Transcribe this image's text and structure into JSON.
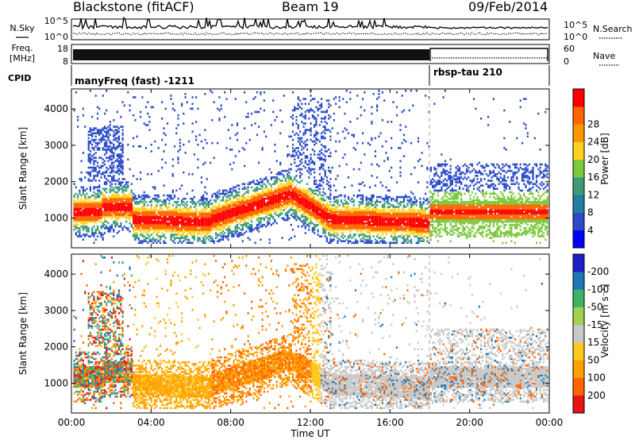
{
  "header": {
    "title": "Blackstone (fitACF)",
    "beam": "Beam 19",
    "date": "09/Feb/2014"
  },
  "top_panels": {
    "noise": {
      "left_label": "N.Sky",
      "right_label": "N.Search",
      "left_ticks": [
        "10^5",
        "10^0"
      ],
      "right_ticks": [
        "10^5",
        "10^0"
      ]
    },
    "freq": {
      "left_label_1": "Freq.",
      "left_label_2": "[MHz]",
      "right_label": "Nave",
      "left_ticks": [
        "18",
        "8"
      ],
      "right_ticks": [
        "60",
        "0"
      ]
    },
    "cpid": {
      "label": "CPID",
      "program_1": "manyFreq (fast) -1211",
      "program_2": "rbsp-tau 210"
    }
  },
  "chart_data": [
    {
      "type": "heatmap",
      "title": "",
      "xlabel": "",
      "ylabel": "Slant Range [km]",
      "x_ticks": [
        "00:00",
        "04:00",
        "08:00",
        "12:00",
        "16:00",
        "20:00",
        "00:00"
      ],
      "y_ticks": [
        "1000",
        "2000",
        "3000",
        "4000"
      ],
      "xlim_hours": [
        0,
        24
      ],
      "ylim_km": [
        180,
        4550
      ],
      "mode_change_hour": 18,
      "colorbar": {
        "label": "Power [dB]",
        "ticks": [
          "4",
          "8",
          "12",
          "16",
          "20",
          "24",
          "28"
        ],
        "colors": [
          "#0000ff",
          "#2a4bc8",
          "#1e7fa0",
          "#3c9c78",
          "#7ec83c",
          "#ffd21e",
          "#ff9600",
          "#ff6400",
          "#ff0000"
        ]
      }
    },
    {
      "type": "heatmap",
      "title": "",
      "xlabel": "Time UT",
      "ylabel": "Slant Range [km]",
      "x_ticks": [
        "00:00",
        "04:00",
        "08:00",
        "12:00",
        "16:00",
        "20:00",
        "00:00"
      ],
      "y_ticks": [
        "1000",
        "2000",
        "3000",
        "4000"
      ],
      "xlim_hours": [
        0,
        24
      ],
      "ylim_km": [
        180,
        4550
      ],
      "mode_change_hour": 18,
      "colorbar": {
        "label": "Velocity [m s⁻¹]",
        "ticks": [
          "200",
          "100",
          "50",
          "15",
          "-15",
          "-50",
          "-100",
          "-200"
        ],
        "colors": [
          "#1e1ec8",
          "#1e78b4",
          "#3cb464",
          "#a0d250",
          "#c8c8c8",
          "#ffc81e",
          "#ffa000",
          "#ff6400",
          "#e61414"
        ]
      }
    }
  ]
}
